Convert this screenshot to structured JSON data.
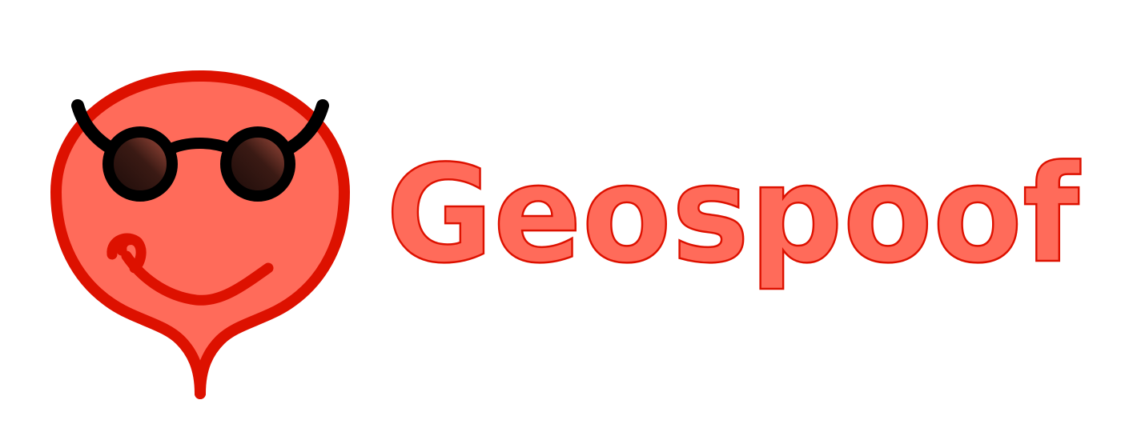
{
  "logo": {
    "wordmark": "Geospoof",
    "colors": {
      "fill": "#ff6b5a",
      "stroke": "#dd1100",
      "glasses": "#000000",
      "lens_dark": "#1a0a08",
      "lens_light": "#a84a3c"
    },
    "mascot_icon": "smiling-map-pin-with-sunglasses-icon"
  }
}
